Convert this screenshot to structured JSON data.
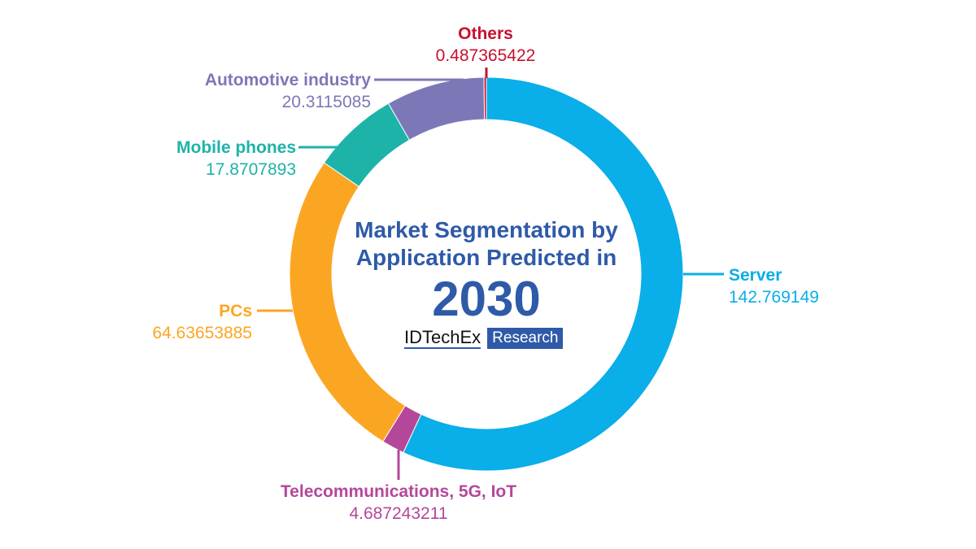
{
  "chart_data": {
    "type": "pie",
    "variant": "donut",
    "title": "Market Segmentation by Application Predicted in",
    "title_year": "2030",
    "start_angle": "top",
    "direction": "clockwise",
    "slices": [
      {
        "name": "Server",
        "value": 142.769149,
        "label": "142.769149",
        "color": "#0AAEE8"
      },
      {
        "name": "Telecommunications, 5G, IoT",
        "value": 4.687243211,
        "label": "4.687243211",
        "color": "#B5479A"
      },
      {
        "name": "PCs",
        "value": 64.63653885,
        "label": "64.63653885",
        "color": "#FBA623"
      },
      {
        "name": "Mobile phones",
        "value": 17.8707893,
        "label": "17.8707893",
        "color": "#1DB3A9"
      },
      {
        "name": "Automotive industry",
        "value": 20.3115085,
        "label": "20.3115085",
        "color": "#7C78B8"
      },
      {
        "name": "Others",
        "value": 0.487365422,
        "label": "0.487365422",
        "color": "#C8102E"
      }
    ]
  },
  "logo": {
    "brand": "IDTechEx",
    "tag": "Research"
  },
  "colors": {
    "title": "#2E5AA8"
  }
}
